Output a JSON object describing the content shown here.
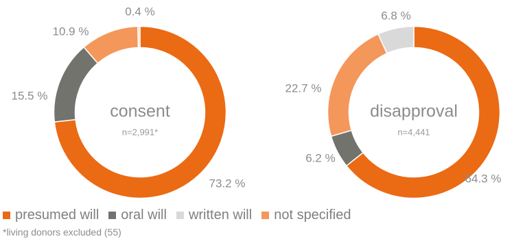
{
  "chart_data": [
    {
      "type": "pie",
      "center_label": "consent",
      "center_sublabel": "n=2,991*",
      "categories": [
        "presumed will",
        "oral will",
        "written will",
        "not specified"
      ],
      "values": [
        73.2,
        15.5,
        0.4,
        10.9
      ],
      "labels": [
        "73.2 %",
        "15.5 %",
        "0.4 %",
        "10.9 %"
      ]
    },
    {
      "type": "pie",
      "center_label": "disapproval",
      "center_sublabel": "n=4,441",
      "categories": [
        "presumed will",
        "oral will",
        "written will",
        "not specified"
      ],
      "values": [
        64.3,
        6.2,
        6.8,
        22.7
      ],
      "labels": [
        "64.3 %",
        "6.2 %",
        "6.8 %",
        "22.7 %"
      ]
    }
  ],
  "colors": {
    "presumed will": "#eb6a14",
    "oral will": "#73736d",
    "written will": "#d9d9d9",
    "not specified": "#f4975a"
  },
  "legend": [
    {
      "label": "presumed will",
      "color": "#eb6a14"
    },
    {
      "label": "oral will",
      "color": "#73736d"
    },
    {
      "label": "written will",
      "color": "#d9d9d9"
    },
    {
      "label": "not specified",
      "color": "#f4975a"
    }
  ],
  "footnote": "*living donors excluded (55)"
}
